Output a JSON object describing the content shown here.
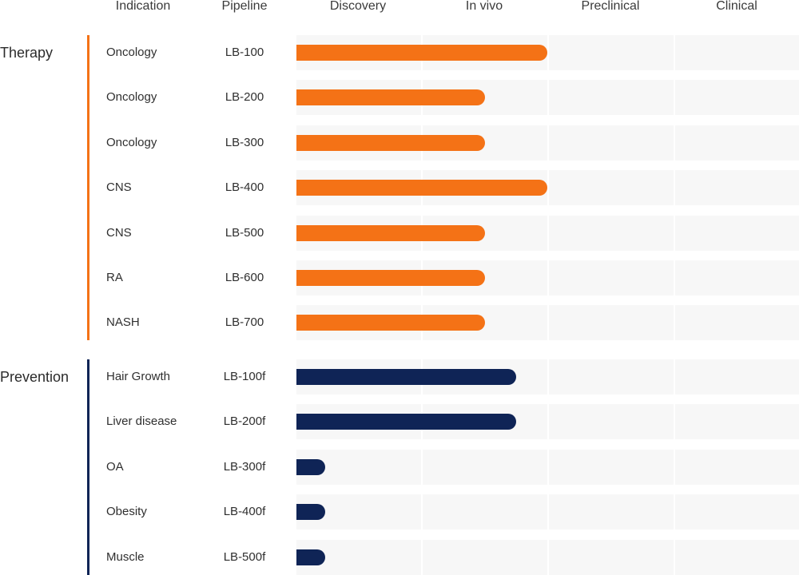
{
  "headers": {
    "indication": "Indication",
    "pipeline": "Pipeline",
    "stages": [
      "Discovery",
      "In vivo",
      "Preclinical",
      "Clinical"
    ]
  },
  "colors": {
    "therapy": "#f47216",
    "prevention": "#0f2456",
    "stage_bg": "#f7f7f7"
  },
  "chart_data": {
    "type": "bar",
    "stages": [
      "Discovery",
      "In vivo",
      "Preclinical",
      "Clinical"
    ],
    "groups": [
      {
        "name": "Therapy",
        "color": "#f47216",
        "items": [
          {
            "indication": "Oncology",
            "pipeline": "LB-100",
            "progress": 2.0
          },
          {
            "indication": "Oncology",
            "pipeline": "LB-200",
            "progress": 1.5
          },
          {
            "indication": "Oncology",
            "pipeline": "LB-300",
            "progress": 1.5
          },
          {
            "indication": "CNS",
            "pipeline": "LB-400",
            "progress": 2.0
          },
          {
            "indication": "CNS",
            "pipeline": "LB-500",
            "progress": 1.5
          },
          {
            "indication": "RA",
            "pipeline": "LB-600",
            "progress": 1.5
          },
          {
            "indication": "NASH",
            "pipeline": "LB-700",
            "progress": 1.5
          }
        ]
      },
      {
        "name": "Prevention",
        "color": "#0f2456",
        "items": [
          {
            "indication": "Hair Growth",
            "pipeline": "LB-100f",
            "progress": 1.75
          },
          {
            "indication": "Liver disease",
            "pipeline": "LB-200f",
            "progress": 1.75
          },
          {
            "indication": "OA",
            "pipeline": "LB-300f",
            "progress": 0.23
          },
          {
            "indication": "Obesity",
            "pipeline": "LB-400f",
            "progress": 0.23
          },
          {
            "indication": "Muscle",
            "pipeline": "LB-500f",
            "progress": 0.23
          }
        ]
      }
    ]
  }
}
